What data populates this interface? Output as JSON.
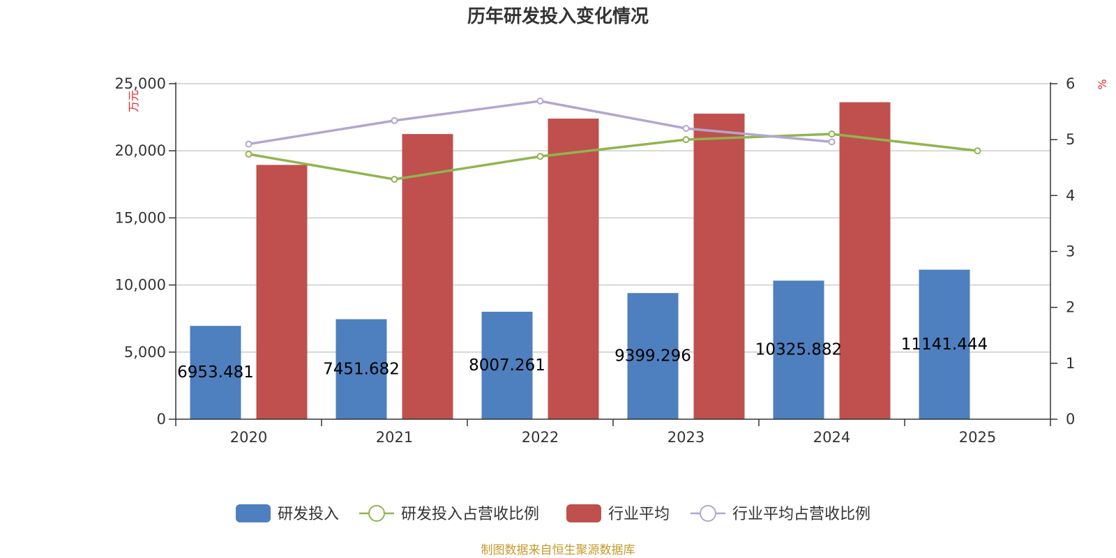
{
  "chart_data": {
    "type": "bar",
    "title": "历年研发投入变化情况",
    "categories": [
      "2020",
      "2021",
      "2022",
      "2023",
      "2024",
      "2025"
    ],
    "y_left": {
      "unit": "万元",
      "range": [
        0,
        25000
      ],
      "ticks": [
        "0",
        "5,000",
        "10,000",
        "15,000",
        "20,000",
        "25,000"
      ]
    },
    "y_right": {
      "unit": "%",
      "range": [
        0,
        6
      ],
      "ticks": [
        "0",
        "1",
        "2",
        "3",
        "4",
        "5",
        "6"
      ]
    },
    "series": [
      {
        "name": "研发投入",
        "type": "bar",
        "axis": "left",
        "color": "#4e7fbe",
        "values": [
          6953.481,
          7451.682,
          8007.261,
          9399.296,
          10325.882,
          11141.444
        ],
        "labels": [
          "6953.481",
          "7451.682",
          "8007.261",
          "9399.296",
          "10325.882",
          "11141.444"
        ]
      },
      {
        "name": "研发投入占营收比例",
        "type": "line",
        "axis": "right",
        "color": "#8fb54f",
        "values": [
          4.74,
          4.29,
          4.7,
          5.0,
          5.1,
          4.8
        ]
      },
      {
        "name": "行业平均",
        "type": "bar",
        "axis": "left",
        "color": "#c0504d",
        "values": [
          18950,
          21250,
          22400,
          22770,
          23620,
          null
        ]
      },
      {
        "name": "行业平均占营收比例",
        "type": "line",
        "axis": "right",
        "color": "#b3a6cf",
        "values": [
          4.92,
          5.34,
          5.69,
          5.2,
          4.96,
          null
        ]
      }
    ],
    "legend": {
      "position": "bottom"
    },
    "grid": true,
    "source": "制图数据来自恒生聚源数据库"
  }
}
